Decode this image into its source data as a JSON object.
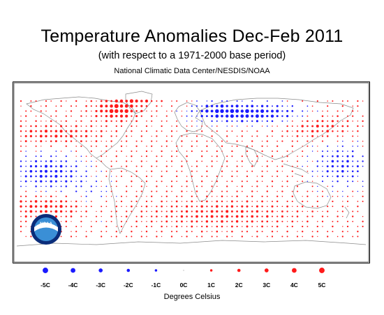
{
  "header": {
    "title": "Temperature Anomalies Dec-Feb 2011",
    "subtitle": "(with respect to a 1971-2000 base period)",
    "source": "National Climatic Data Center/NESDIS/NOAA"
  },
  "logo": {
    "text": "NOAA"
  },
  "legend": {
    "units": "Degrees Celsius",
    "items": [
      {
        "label": "-5C",
        "value": -5
      },
      {
        "label": "-4C",
        "value": -4
      },
      {
        "label": "-3C",
        "value": -3
      },
      {
        "label": "-2C",
        "value": -2
      },
      {
        "label": "-1C",
        "value": -1
      },
      {
        "label": "0C",
        "value": 0
      },
      {
        "label": "1C",
        "value": 1
      },
      {
        "label": "2C",
        "value": 2
      },
      {
        "label": "3C",
        "value": 3
      },
      {
        "label": "4C",
        "value": 4
      },
      {
        "label": "5C",
        "value": 5
      }
    ]
  },
  "colors": {
    "warm": "#ff1a1a",
    "cold": "#1a1aff",
    "coast": "#777777",
    "frame": "#000000"
  }
}
